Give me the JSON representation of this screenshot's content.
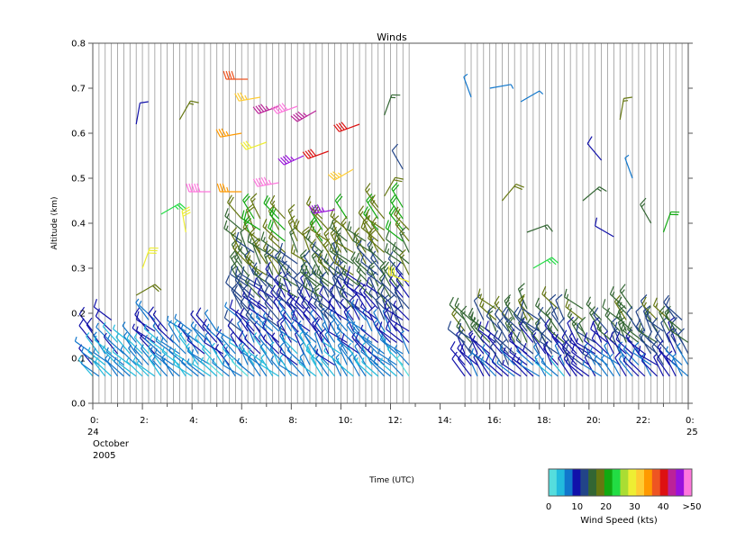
{
  "chart_data": {
    "type": "wind-barb",
    "title": "Winds",
    "xlabel": "Time (UTC)",
    "ylabel": "Altitude (km)",
    "xlim": [
      0,
      24
    ],
    "ylim": [
      0.0,
      0.8
    ],
    "grid": false,
    "yticks": [
      {
        "value": 0.0,
        "label": "0.0"
      },
      {
        "value": 0.1,
        "label": "0.1"
      },
      {
        "value": 0.2,
        "label": "0.2"
      },
      {
        "value": 0.3,
        "label": "0.3"
      },
      {
        "value": 0.4,
        "label": "0.4"
      },
      {
        "value": 0.5,
        "label": "0.5"
      },
      {
        "value": 0.6,
        "label": "0.6"
      },
      {
        "value": 0.7,
        "label": "0.7"
      },
      {
        "value": 0.8,
        "label": "0.8"
      }
    ],
    "xticks": [
      {
        "value": 0,
        "label": "0:"
      },
      {
        "value": 2,
        "label": "2:"
      },
      {
        "value": 4,
        "label": "4:"
      },
      {
        "value": 6,
        "label": "6:"
      },
      {
        "value": 8,
        "label": "8:"
      },
      {
        "value": 10,
        "label": "10:"
      },
      {
        "value": 12,
        "label": "12:"
      },
      {
        "value": 14,
        "label": "14:"
      },
      {
        "value": 16,
        "label": "16:"
      },
      {
        "value": 18,
        "label": "18:"
      },
      {
        "value": 20,
        "label": "20:"
      },
      {
        "value": 22,
        "label": "22:"
      },
      {
        "value": 24,
        "label": "0:"
      }
    ],
    "date_start": [
      "24",
      "October",
      "2005"
    ],
    "date_end": "25",
    "colorbar": {
      "label": "Wind Speed (kts)",
      "tick_labels": [
        "0",
        "10",
        "20",
        "30",
        "40",
        ">50"
      ],
      "colors": [
        "#55dddd",
        "#22bbdd",
        "#1177cc",
        "#1111aa",
        "#224488",
        "#336633",
        "#667711",
        "#11aa11",
        "#22dd44",
        "#aadd33",
        "#eeee33",
        "#ffcc33",
        "#ff9900",
        "#ee5522",
        "#dd1111",
        "#bb2299",
        "#9911dd",
        "#ff77dd"
      ]
    },
    "profile_times": [
      0.0,
      0.25,
      0.5,
      0.75,
      1.0,
      1.25,
      1.5,
      1.75,
      2.0,
      2.25,
      2.5,
      2.75,
      3.0,
      3.25,
      3.5,
      3.75,
      4.0,
      4.25,
      4.5,
      4.75,
      5.0,
      5.25,
      5.5,
      5.75,
      6.0,
      6.25,
      6.5,
      6.75,
      7.0,
      7.25,
      7.5,
      7.75,
      8.0,
      8.25,
      8.5,
      8.75,
      9.0,
      9.25,
      9.5,
      9.75,
      10.0,
      10.25,
      10.5,
      10.75,
      11.0,
      11.25,
      11.5,
      11.75,
      12.0,
      12.25,
      12.5,
      12.75,
      15.0,
      15.25,
      15.5,
      15.75,
      16.0,
      16.25,
      16.5,
      16.75,
      17.0,
      17.25,
      17.5,
      17.75,
      18.0,
      18.25,
      18.5,
      18.75,
      19.0,
      19.25,
      19.5,
      19.75,
      20.0,
      20.25,
      20.5,
      20.75,
      21.0,
      21.25,
      21.5,
      21.75,
      22.0,
      22.25,
      22.5,
      22.75,
      23.0,
      23.25,
      23.5,
      23.75,
      24.0
    ],
    "series": [
      {
        "profiles": [
          0,
          24
        ],
        "max_alt": 0.2,
        "speed_kts": [
          5,
          12
        ],
        "dir_deg": [
          300,
          330
        ]
      },
      {
        "profiles": [
          24,
          52
        ],
        "max_alt": 0.45,
        "speed_kts": [
          5,
          25
        ],
        "dir_deg": [
          300,
          340
        ]
      },
      {
        "profiles": [
          52,
          89
        ],
        "max_alt": 0.22,
        "speed_kts": [
          8,
          22
        ],
        "dir_deg": [
          300,
          340
        ]
      }
    ],
    "upper_winds": [
      {
        "t": 1.75,
        "alt": 0.62,
        "speed_kts": 10,
        "dir_deg": 10
      },
      {
        "t": 3.5,
        "alt": 0.63,
        "speed_kts": 18,
        "dir_deg": 30
      },
      {
        "t": 6.25,
        "alt": 0.72,
        "speed_kts": 40,
        "dir_deg": 270
      },
      {
        "t": 6.75,
        "alt": 0.68,
        "speed_kts": 35,
        "dir_deg": 260
      },
      {
        "t": 7.5,
        "alt": 0.66,
        "speed_kts": 45,
        "dir_deg": 250
      },
      {
        "t": 8.25,
        "alt": 0.66,
        "speed_kts": 50,
        "dir_deg": 250
      },
      {
        "t": 9.0,
        "alt": 0.65,
        "speed_kts": 45,
        "dir_deg": 240
      },
      {
        "t": 10.75,
        "alt": 0.62,
        "speed_kts": 42,
        "dir_deg": 250
      },
      {
        "t": 11.75,
        "alt": 0.64,
        "speed_kts": 15,
        "dir_deg": 20
      },
      {
        "t": 6.0,
        "alt": 0.6,
        "speed_kts": 38,
        "dir_deg": 260
      },
      {
        "t": 7.0,
        "alt": 0.58,
        "speed_kts": 30,
        "dir_deg": 250
      },
      {
        "t": 8.5,
        "alt": 0.55,
        "speed_kts": 48,
        "dir_deg": 245
      },
      {
        "t": 9.5,
        "alt": 0.56,
        "speed_kts": 44,
        "dir_deg": 250
      },
      {
        "t": 10.5,
        "alt": 0.52,
        "speed_kts": 35,
        "dir_deg": 240
      },
      {
        "t": 12.5,
        "alt": 0.52,
        "speed_kts": 12,
        "dir_deg": 330
      },
      {
        "t": 4.75,
        "alt": 0.47,
        "speed_kts": 50,
        "dir_deg": 270
      },
      {
        "t": 6.0,
        "alt": 0.47,
        "speed_kts": 38,
        "dir_deg": 270
      },
      {
        "t": 7.5,
        "alt": 0.49,
        "speed_kts": 55,
        "dir_deg": 260
      },
      {
        "t": 9.75,
        "alt": 0.43,
        "speed_kts": 48,
        "dir_deg": 260
      },
      {
        "t": 11.75,
        "alt": 0.46,
        "speed_kts": 20,
        "dir_deg": 30
      },
      {
        "t": 2.75,
        "alt": 0.42,
        "speed_kts": 25,
        "dir_deg": 60
      },
      {
        "t": 3.75,
        "alt": 0.38,
        "speed_kts": 30,
        "dir_deg": 350
      },
      {
        "t": 2.0,
        "alt": 0.3,
        "speed_kts": 32,
        "dir_deg": 20
      },
      {
        "t": 1.75,
        "alt": 0.24,
        "speed_kts": 20,
        "dir_deg": 60
      },
      {
        "t": 12.75,
        "alt": 0.27,
        "speed_kts": 30,
        "dir_deg": 290
      },
      {
        "t": 15.25,
        "alt": 0.68,
        "speed_kts": 8,
        "dir_deg": 340
      },
      {
        "t": 16.0,
        "alt": 0.7,
        "speed_kts": 8,
        "dir_deg": 80
      },
      {
        "t": 17.25,
        "alt": 0.67,
        "speed_kts": 8,
        "dir_deg": 60
      },
      {
        "t": 16.5,
        "alt": 0.45,
        "speed_kts": 20,
        "dir_deg": 40
      },
      {
        "t": 17.5,
        "alt": 0.38,
        "speed_kts": 15,
        "dir_deg": 70
      },
      {
        "t": 17.75,
        "alt": 0.3,
        "speed_kts": 25,
        "dir_deg": 60
      },
      {
        "t": 19.75,
        "alt": 0.45,
        "speed_kts": 15,
        "dir_deg": 50
      },
      {
        "t": 20.5,
        "alt": 0.54,
        "speed_kts": 10,
        "dir_deg": 320
      },
      {
        "t": 21.25,
        "alt": 0.63,
        "speed_kts": 18,
        "dir_deg": 10
      },
      {
        "t": 21.75,
        "alt": 0.5,
        "speed_kts": 8,
        "dir_deg": 340
      },
      {
        "t": 21.0,
        "alt": 0.37,
        "speed_kts": 10,
        "dir_deg": 300
      },
      {
        "t": 22.5,
        "alt": 0.4,
        "speed_kts": 15,
        "dir_deg": 330
      },
      {
        "t": 23.0,
        "alt": 0.38,
        "speed_kts": 22,
        "dir_deg": 20
      }
    ]
  }
}
